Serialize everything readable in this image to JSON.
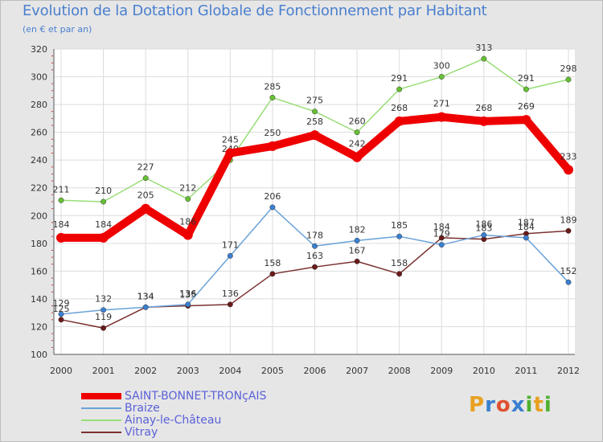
{
  "colors": {
    "background": "#e6e6e6",
    "plot_background": "#ffffff",
    "grid": "#dcdcdc",
    "title": "#4a7fcf",
    "axis_text": "#333333",
    "legend_text": "#5b62d8"
  },
  "logo": {
    "letters": [
      "P",
      "r",
      "o",
      "x",
      "i",
      "t",
      "i"
    ],
    "letter_colors": [
      "#e8a020",
      "#3a7fd0",
      "#e05030",
      "#3a7fd0",
      "#50b030",
      "#e8a020",
      "#50b030"
    ]
  },
  "chart_data": {
    "type": "line",
    "title": "Evolution de la Dotation Globale de Fonctionnement par Habitant",
    "subtitle": "(en € et par an)",
    "xlabel": "",
    "ylabel": "",
    "x": [
      "2000",
      "2001",
      "2002",
      "2003",
      "2004",
      "2005",
      "2006",
      "2007",
      "2008",
      "2009",
      "2010",
      "2011",
      "2012"
    ],
    "ylim": [
      100,
      320
    ],
    "yticks": [
      "100",
      "120",
      "140",
      "160",
      "180",
      "200",
      "220",
      "240",
      "260",
      "280",
      "300",
      "320"
    ],
    "grid": true,
    "legend_position": "bottom-left",
    "series": [
      {
        "name": "SAINT-BONNET-TRONçAIS",
        "color": "#ee0000",
        "marker_color": "#ee0000",
        "width": "thick",
        "values": [
          184,
          184,
          205,
          186,
          245,
          250,
          258,
          242,
          268,
          271,
          268,
          269,
          233
        ],
        "labels": [
          "184",
          "184",
          "205",
          "186",
          "245",
          "250",
          "258",
          "242",
          "268",
          "271",
          "268",
          "269",
          "233"
        ]
      },
      {
        "name": "Braize",
        "color": "#6aa2d8",
        "marker_color": "#3a7fd0",
        "width": "thin",
        "values": [
          129,
          132,
          134,
          136,
          171,
          206,
          178,
          182,
          185,
          179,
          186,
          184,
          152
        ],
        "labels": [
          "129",
          "132",
          "134",
          "136",
          "171",
          "206",
          "178",
          "182",
          "185",
          "179",
          "186",
          "184",
          "152"
        ]
      },
      {
        "name": "Ainay-le-Château",
        "color": "#99dd77",
        "marker_color": "#66c033",
        "width": "thin",
        "values": [
          211,
          210,
          227,
          212,
          240,
          285,
          275,
          260,
          291,
          300,
          313,
          291,
          298
        ],
        "labels": [
          "211",
          "210",
          "227",
          "212",
          "240",
          "285",
          "275",
          "260",
          "291",
          "300",
          "313",
          "291",
          "298"
        ]
      },
      {
        "name": "Vitray",
        "color": "#7b3030",
        "marker_color": "#6b1a1a",
        "width": "thin",
        "values": [
          125,
          119,
          134,
          135,
          136,
          158,
          163,
          167,
          158,
          184,
          183,
          187,
          189
        ],
        "labels": [
          "125",
          "119",
          "134",
          "135",
          "136",
          "158",
          "163",
          "167",
          "158",
          "184",
          "183",
          "187",
          "189"
        ]
      }
    ]
  }
}
